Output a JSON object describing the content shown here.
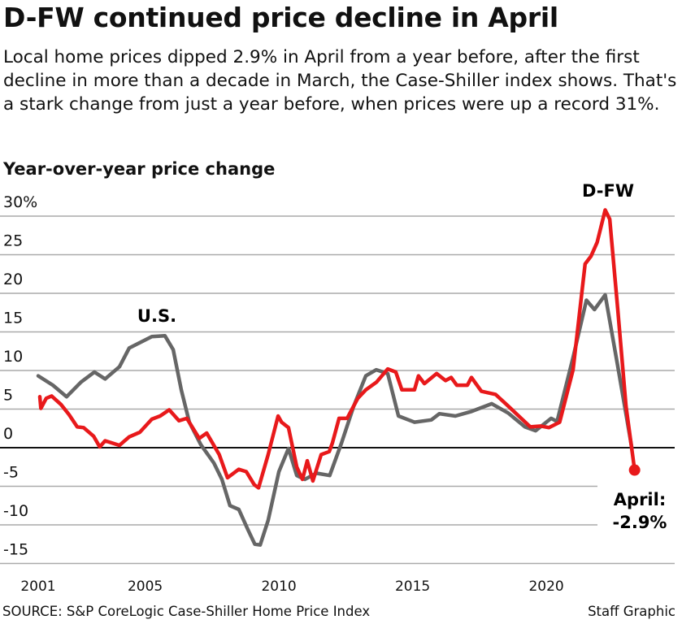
{
  "title": "D-FW continued price decline in April",
  "subtitle": "Local home prices dipped 2.9% in April from a year before, after the first decline in more than a decade in March, the Case-Shiller index shows. That's a stark change from just a year before, when prices were up a record 31%.",
  "source": "SOURCE: S&P CoreLogic Case-Shiller Home Price Index",
  "credit": "Staff Graphic",
  "chart_data": {
    "type": "line",
    "title": "",
    "ylabel": "Year-over-year price change",
    "xlabel": "",
    "ylim": [
      -15,
      30
    ],
    "xlim": [
      2001,
      2023.3
    ],
    "yticks": [
      30,
      25,
      20,
      15,
      10,
      5,
      0,
      -5,
      -10,
      -15
    ],
    "ytick_labels": [
      "30%",
      "25",
      "20",
      "15",
      "10",
      "5",
      "0",
      "-5",
      "-10",
      "-15"
    ],
    "xticks": [
      2001,
      2005,
      2010,
      2015,
      2020
    ],
    "xtick_labels": [
      "2001",
      "2005",
      "2010",
      "2015",
      "2020"
    ],
    "grid": true,
    "colors": {
      "dfw": "#e8191b",
      "us": "#666666",
      "zero": "#111111",
      "grid": "#aaaaaa"
    },
    "series": [
      {
        "name": "U.S.",
        "color": "#666666",
        "x": [
          2001.0,
          2001.55,
          2002.06,
          2002.6,
          2003.1,
          2003.5,
          2004.04,
          2004.4,
          2004.8,
          2005.25,
          2005.74,
          2006.05,
          2006.35,
          2006.65,
          2007.08,
          2007.57,
          2007.87,
          2008.17,
          2008.5,
          2008.84,
          2009.1,
          2009.3,
          2009.6,
          2010.0,
          2010.36,
          2010.67,
          2010.97,
          2011.4,
          2011.9,
          2012.34,
          2012.8,
          2013.25,
          2013.64,
          2014.07,
          2014.47,
          2015.07,
          2015.7,
          2016.0,
          2016.6,
          2017.2,
          2017.96,
          2018.57,
          2019.2,
          2019.6,
          2020.18,
          2020.4,
          2021.0,
          2021.5,
          2021.8,
          2022.2,
          2022.67,
          2023.2
        ],
        "y": [
          9.3,
          8.1,
          6.6,
          8.5,
          9.8,
          8.9,
          10.5,
          12.9,
          13.6,
          14.4,
          14.5,
          12.7,
          7.5,
          3.3,
          0.4,
          -2.0,
          -4.1,
          -7.5,
          -8.0,
          -10.6,
          -12.5,
          -12.6,
          -9.4,
          -3.1,
          -0.1,
          -3.6,
          -4.1,
          -3.3,
          -3.6,
          0.6,
          5.4,
          9.3,
          10.1,
          9.6,
          4.1,
          3.3,
          3.6,
          4.4,
          4.1,
          4.7,
          5.7,
          4.5,
          2.7,
          2.2,
          3.8,
          3.4,
          11.7,
          19.1,
          17.9,
          19.8,
          10.6,
          -0.1
        ]
      },
      {
        "name": "D-FW",
        "color": "#e8191b",
        "x": [
          2001.06,
          2001.1,
          2001.3,
          2001.5,
          2001.85,
          2002.15,
          2002.46,
          2002.7,
          2003.07,
          2003.3,
          2003.5,
          2004.04,
          2004.4,
          2004.8,
          2005.25,
          2005.56,
          2005.9,
          2006.26,
          2006.56,
          2007.02,
          2007.3,
          2007.77,
          2008.08,
          2008.5,
          2008.78,
          2009.08,
          2009.24,
          2009.6,
          2009.97,
          2010.1,
          2010.36,
          2010.67,
          2010.88,
          2011.06,
          2011.27,
          2011.58,
          2011.88,
          2012.0,
          2012.25,
          2012.55,
          2012.95,
          2013.25,
          2013.65,
          2014.07,
          2014.37,
          2014.6,
          2015.07,
          2015.22,
          2015.44,
          2015.9,
          2016.23,
          2016.44,
          2016.65,
          2017.05,
          2017.2,
          2017.57,
          2018.1,
          2018.57,
          2019.0,
          2019.4,
          2019.8,
          2020.1,
          2020.5,
          2021.0,
          2021.45,
          2021.67,
          2021.9,
          2022.2,
          2022.37,
          2022.67,
          2022.98,
          2023.3
        ],
        "y": [
          6.6,
          5.1,
          6.4,
          6.7,
          5.6,
          4.3,
          2.7,
          2.6,
          1.5,
          0.1,
          0.9,
          0.3,
          1.4,
          2.0,
          3.7,
          4.1,
          4.9,
          3.5,
          3.8,
          1.2,
          1.9,
          -0.9,
          -3.9,
          -2.8,
          -3.1,
          -4.8,
          -5.2,
          -0.9,
          4.1,
          3.3,
          2.6,
          -2.5,
          -4.1,
          -1.7,
          -4.3,
          -0.9,
          -0.5,
          0.6,
          3.8,
          3.8,
          6.4,
          7.5,
          8.5,
          10.2,
          9.8,
          7.5,
          7.5,
          9.3,
          8.3,
          9.6,
          8.7,
          9.1,
          8.1,
          8.1,
          9.1,
          7.3,
          6.9,
          5.4,
          4.0,
          2.7,
          2.8,
          2.6,
          3.3,
          10.1,
          23.8,
          24.8,
          26.6,
          30.8,
          29.6,
          18.0,
          5.4,
          -2.9
        ]
      }
    ],
    "annotations": {
      "us_label": "U.S.",
      "dfw_label": "D-FW",
      "latest_label": "April:",
      "latest_value": "-2.9%"
    }
  }
}
